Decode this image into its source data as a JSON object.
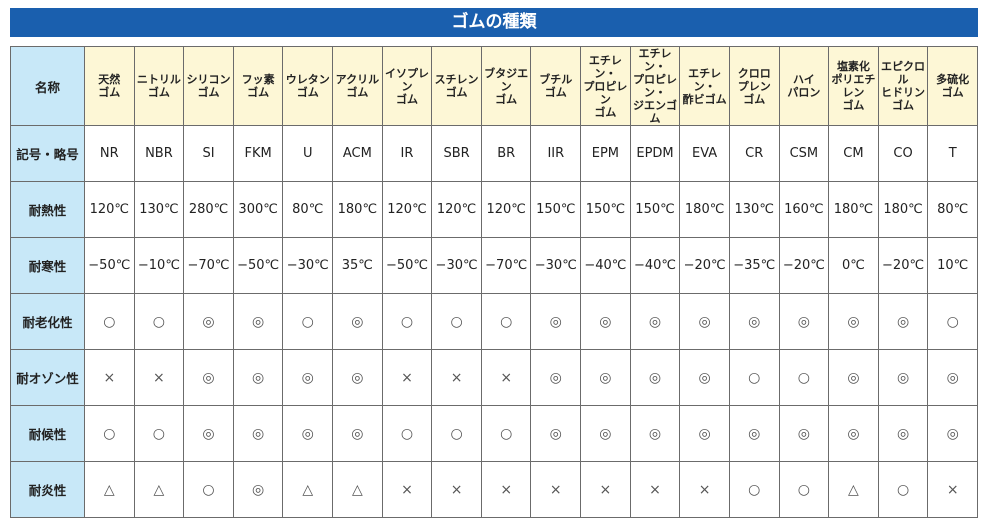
{
  "title": "ゴムの種類",
  "row_labels": [
    "名称",
    "記号・略号",
    "耐熱性",
    "耐寒性",
    "耐老化性",
    "耐オゾン性",
    "耐候性",
    "耐炎性"
  ],
  "colors": {
    "title_bar": "#1a5fae",
    "header_bg": "#fdf7d6",
    "label_bg": "#c8e8f8"
  },
  "columns": [
    {
      "name": "天然\nゴム",
      "code": "NR",
      "heat": "120℃",
      "cold": "−50℃",
      "aging": "○",
      "ozone": "×",
      "weather": "○",
      "flame": "△"
    },
    {
      "name": "ニトリル\nゴム",
      "code": "NBR",
      "heat": "130℃",
      "cold": "−10℃",
      "aging": "○",
      "ozone": "×",
      "weather": "○",
      "flame": "△"
    },
    {
      "name": "シリコン\nゴム",
      "code": "SI",
      "heat": "280℃",
      "cold": "−70℃",
      "aging": "◎",
      "ozone": "◎",
      "weather": "◎",
      "flame": "○"
    },
    {
      "name": "フッ素\nゴム",
      "code": "FKM",
      "heat": "300℃",
      "cold": "−50℃",
      "aging": "◎",
      "ozone": "◎",
      "weather": "◎",
      "flame": "◎"
    },
    {
      "name": "ウレタン\nゴム",
      "code": "U",
      "heat": "80℃",
      "cold": "−30℃",
      "aging": "○",
      "ozone": "◎",
      "weather": "◎",
      "flame": "△"
    },
    {
      "name": "アクリル\nゴム",
      "code": "ACM",
      "heat": "180℃",
      "cold": "35℃",
      "aging": "◎",
      "ozone": "◎",
      "weather": "◎",
      "flame": "△"
    },
    {
      "name": "イソプレン\nゴム",
      "code": "IR",
      "heat": "120℃",
      "cold": "−50℃",
      "aging": "○",
      "ozone": "×",
      "weather": "○",
      "flame": "×"
    },
    {
      "name": "スチレン\nゴム",
      "code": "SBR",
      "heat": "120℃",
      "cold": "−30℃",
      "aging": "○",
      "ozone": "×",
      "weather": "○",
      "flame": "×"
    },
    {
      "name": "ブタジエン\nゴム",
      "code": "BR",
      "heat": "120℃",
      "cold": "−70℃",
      "aging": "○",
      "ozone": "×",
      "weather": "○",
      "flame": "×"
    },
    {
      "name": "ブチル\nゴム",
      "code": "IIR",
      "heat": "150℃",
      "cold": "−30℃",
      "aging": "◎",
      "ozone": "◎",
      "weather": "◎",
      "flame": "×"
    },
    {
      "name": "エチレン・\nプロピレン\nゴム",
      "code": "EPM",
      "heat": "150℃",
      "cold": "−40℃",
      "aging": "◎",
      "ozone": "◎",
      "weather": "◎",
      "flame": "×"
    },
    {
      "name": "エチレン・\nプロピレン・\nジエンゴム",
      "code": "EPDM",
      "heat": "150℃",
      "cold": "−40℃",
      "aging": "◎",
      "ozone": "◎",
      "weather": "◎",
      "flame": "×"
    },
    {
      "name": "エチレン・\n酢ビゴム",
      "code": "EVA",
      "heat": "180℃",
      "cold": "−20℃",
      "aging": "◎",
      "ozone": "◎",
      "weather": "◎",
      "flame": "×"
    },
    {
      "name": "クロロ\nプレン\nゴム",
      "code": "CR",
      "heat": "130℃",
      "cold": "−35℃",
      "aging": "◎",
      "ozone": "○",
      "weather": "◎",
      "flame": "○"
    },
    {
      "name": "ハイ\nパロン",
      "code": "CSM",
      "heat": "160℃",
      "cold": "−20℃",
      "aging": "◎",
      "ozone": "○",
      "weather": "◎",
      "flame": "○"
    },
    {
      "name": "塩素化\nポリエチレン\nゴム",
      "code": "CM",
      "heat": "180℃",
      "cold": "0℃",
      "aging": "◎",
      "ozone": "◎",
      "weather": "◎",
      "flame": "△"
    },
    {
      "name": "エピクロル\nヒドリン\nゴム",
      "code": "CO",
      "heat": "180℃",
      "cold": "−20℃",
      "aging": "◎",
      "ozone": "◎",
      "weather": "◎",
      "flame": "○"
    },
    {
      "name": "多硫化\nゴム",
      "code": "T",
      "heat": "80℃",
      "cold": "10℃",
      "aging": "○",
      "ozone": "◎",
      "weather": "◎",
      "flame": "×"
    }
  ]
}
